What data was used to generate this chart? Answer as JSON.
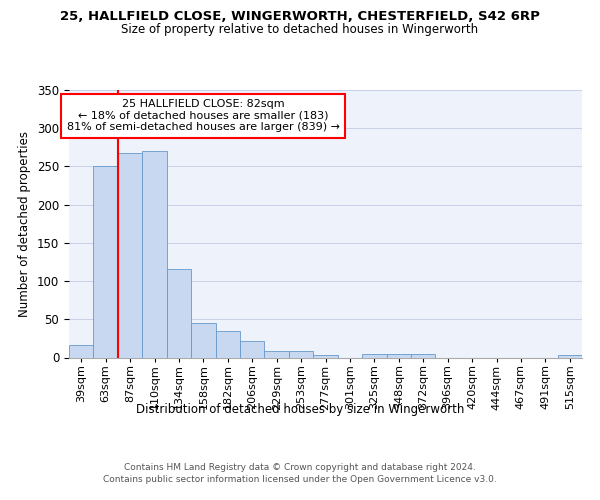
{
  "title1": "25, HALLFIELD CLOSE, WINGERWORTH, CHESTERFIELD, S42 6RP",
  "title2": "Size of property relative to detached houses in Wingerworth",
  "xlabel": "Distribution of detached houses by size in Wingerworth",
  "ylabel": "Number of detached properties",
  "categories": [
    "39sqm",
    "63sqm",
    "87sqm",
    "110sqm",
    "134sqm",
    "158sqm",
    "182sqm",
    "206sqm",
    "229sqm",
    "253sqm",
    "277sqm",
    "301sqm",
    "325sqm",
    "348sqm",
    "372sqm",
    "396sqm",
    "420sqm",
    "444sqm",
    "467sqm",
    "491sqm",
    "515sqm"
  ],
  "values": [
    16,
    251,
    267,
    270,
    116,
    45,
    35,
    22,
    8,
    9,
    3,
    0,
    4,
    5,
    5,
    0,
    0,
    0,
    0,
    0,
    3
  ],
  "bar_color": "#c8d8f0",
  "bar_edge_color": "#6699cc",
  "vline_index": 2,
  "annotation_text": "25 HALLFIELD CLOSE: 82sqm\n← 18% of detached houses are smaller (183)\n81% of semi-detached houses are larger (839) →",
  "annotation_box_color": "white",
  "annotation_box_edge": "red",
  "vline_color": "red",
  "footer1": "Contains HM Land Registry data © Crown copyright and database right 2024.",
  "footer2": "Contains public sector information licensed under the Open Government Licence v3.0.",
  "bg_color": "#eef2fb",
  "grid_color": "#c8d0e8",
  "ylim": [
    0,
    350
  ],
  "yticks": [
    0,
    50,
    100,
    150,
    200,
    250,
    300,
    350
  ]
}
